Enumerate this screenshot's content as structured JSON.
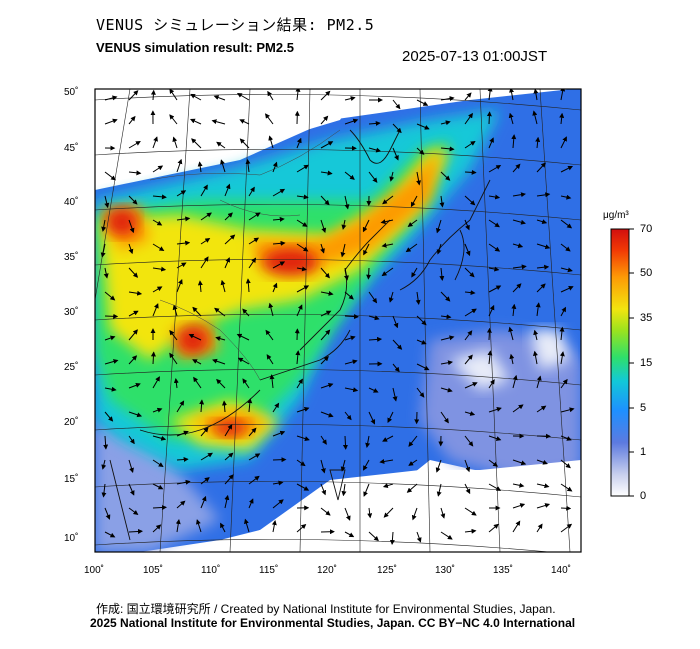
{
  "title_jp": "VENUS シミュレーション結果: PM2.5",
  "title_en": "VENUS simulation result: PM2.5",
  "timestamp": "2025-07-13 01:00JST",
  "legend": {
    "unit": "μg/m³",
    "ticks": [
      "70",
      "50",
      "35",
      "15",
      "5",
      "1",
      "0"
    ],
    "colors": [
      "#ffffff",
      "#c9d0ee",
      "#5c7ae0",
      "#1e90ff",
      "#12c8d8",
      "#2fe06a",
      "#9be31e",
      "#f2e50f",
      "#fd9a06",
      "#f23a05",
      "#d10f0f"
    ]
  },
  "y_ticks": [
    "50˚",
    "45˚",
    "40˚",
    "35˚",
    "30˚",
    "25˚",
    "20˚",
    "15˚",
    "10˚"
  ],
  "x_ticks": [
    "100˚",
    "105˚",
    "110˚",
    "115˚",
    "120˚",
    "125˚",
    "130˚",
    "135˚",
    "140˚"
  ],
  "credit": "作成: 国立環境研究所 / Created by National Institute for Environmental Studies, Japan.",
  "copyright": "2025 National Institute for Environmental Studies, Japan. CC BY−NC 4.0 International"
}
